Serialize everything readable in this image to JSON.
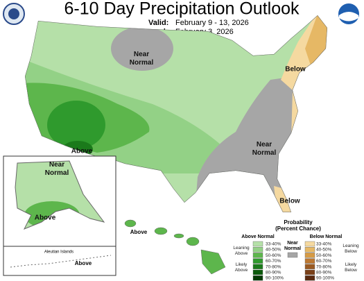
{
  "header": {
    "title": "6-10 Day Precipitation Outlook",
    "valid_label": "Valid:",
    "valid": "February 9 - 13, 2026",
    "issued_label": "Issued:",
    "issued": "February 3, 2026"
  },
  "map_labels": {
    "conus_north": [
      "Near",
      "Normal"
    ],
    "northeast": "Below",
    "southwest": "Above",
    "southeast": [
      "Near",
      "Normal"
    ],
    "florida": "Below",
    "alaska_north": [
      "Near",
      "Normal"
    ],
    "alaska_south": "Above",
    "aleutian_title": "Aleutian Islands",
    "aleutian": "Above",
    "hawaii": "Above"
  },
  "legend": {
    "title": [
      "Probability",
      "(Percent Chance)"
    ],
    "above_title": "Above Normal",
    "below_title": "Below Normal",
    "near_title": [
      "Near",
      "Normal"
    ],
    "near_color": "#a6a6a6",
    "leaning_above": [
      "Leaning",
      "Above"
    ],
    "likely_above": [
      "Likely",
      "Above"
    ],
    "leaning_below": [
      "Leaning",
      "Below"
    ],
    "likely_below": [
      "Likely",
      "Below"
    ],
    "above": [
      {
        "label": "33-40%",
        "color": "#b5e0a8"
      },
      {
        "label": "40-50%",
        "color": "#93d186"
      },
      {
        "label": "50-60%",
        "color": "#5db64c"
      },
      {
        "label": "60-70%",
        "color": "#2f9a2d"
      },
      {
        "label": "70-80%",
        "color": "#1b7a1b"
      },
      {
        "label": "80-90%",
        "color": "#0b5a0b"
      },
      {
        "label": "90-100%",
        "color": "#053a05"
      }
    ],
    "below": [
      {
        "label": "33-40%",
        "color": "#f5d9a0"
      },
      {
        "label": "40-50%",
        "color": "#e6b865"
      },
      {
        "label": "50-60%",
        "color": "#d69b45"
      },
      {
        "label": "60-70%",
        "color": "#bd7832"
      },
      {
        "label": "70-80%",
        "color": "#9a5a22"
      },
      {
        "label": "80-90%",
        "color": "#7a4018"
      },
      {
        "label": "90-100%",
        "color": "#5a2a10"
      }
    ]
  }
}
